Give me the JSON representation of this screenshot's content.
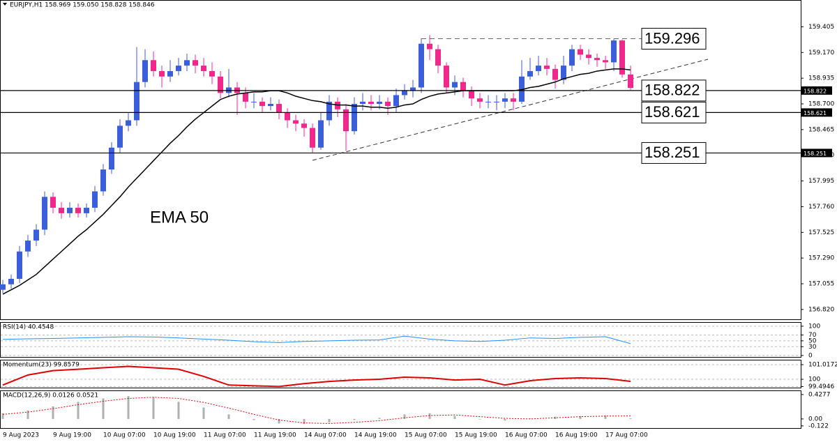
{
  "chart_data": [
    {
      "type": "candlestick",
      "header": "EURJPY,H1  158.969 159.050 158.828 158.846",
      "categories": [
        "9 Aug 2023",
        null,
        null,
        null,
        null,
        null,
        null,
        null,
        "9 Aug 19:00",
        null,
        null,
        null,
        null,
        null,
        "10 Aug 07:00",
        null,
        null,
        null,
        null,
        null,
        "10 Aug 19:00",
        null,
        null,
        null,
        null,
        null,
        "11 Aug 07:00",
        null,
        null,
        null,
        null,
        null,
        "11 Aug 19:00",
        null,
        null,
        null,
        null,
        null,
        "14 Aug 07:00",
        null,
        null,
        null,
        null,
        null,
        "14 Aug 19:00",
        null,
        null,
        null,
        null,
        null,
        "15 Aug 07:00",
        null,
        null,
        null,
        null,
        null,
        "15 Aug 19:00",
        null,
        null,
        null,
        null,
        null,
        "16 Aug 07:00",
        null,
        null,
        null,
        null,
        null,
        "16 Aug 19:00",
        null,
        null,
        null,
        null,
        null,
        "17 Aug 07:00",
        null
      ],
      "open": [
        157.0,
        157.05,
        157.1,
        157.35,
        157.45,
        157.55,
        157.85,
        157.75,
        157.7,
        157.75,
        157.7,
        157.75,
        157.9,
        158.1,
        158.3,
        158.5,
        158.55,
        158.9,
        159.1,
        159.0,
        158.95,
        159.0,
        159.05,
        159.1,
        159.05,
        159.0,
        158.95,
        158.8,
        158.85,
        158.8,
        158.72,
        158.72,
        158.68,
        158.7,
        158.62,
        158.55,
        158.52,
        158.48,
        158.3,
        158.55,
        158.72,
        158.65,
        158.45,
        158.7,
        158.72,
        158.7,
        158.72,
        158.68,
        158.78,
        158.82,
        158.85,
        159.25,
        159.2,
        159.05,
        158.85,
        158.9,
        158.82,
        158.75,
        158.72,
        158.72,
        158.72,
        158.75,
        158.72,
        158.95,
        159.0,
        159.05,
        159.02,
        158.92,
        159.05,
        159.2,
        159.15,
        159.12,
        159.1,
        159.08,
        159.28,
        158.969
      ],
      "high": [
        157.09,
        157.14,
        157.4,
        157.5,
        157.6,
        157.9,
        157.89,
        157.8,
        157.8,
        157.79,
        157.79,
        157.95,
        158.15,
        158.35,
        158.56,
        158.62,
        159.22,
        159.2,
        159.18,
        159.05,
        159.1,
        159.12,
        159.16,
        159.15,
        159.12,
        159.08,
        159.0,
        159.02,
        158.9,
        158.85,
        158.8,
        158.76,
        158.76,
        158.74,
        158.66,
        158.6,
        158.56,
        158.52,
        158.62,
        158.78,
        158.76,
        158.7,
        158.76,
        158.8,
        158.78,
        158.78,
        158.76,
        158.84,
        158.88,
        158.92,
        159.3,
        159.33,
        159.24,
        159.08,
        158.96,
        158.94,
        158.86,
        158.8,
        158.78,
        158.78,
        158.8,
        158.8,
        159.1,
        159.12,
        159.14,
        159.12,
        159.06,
        159.14,
        159.24,
        159.24,
        159.2,
        159.16,
        159.14,
        159.296,
        159.29,
        159.05
      ],
      "low": [
        156.97,
        157.01,
        157.06,
        157.3,
        157.4,
        157.5,
        157.7,
        157.65,
        157.66,
        157.66,
        157.66,
        157.71,
        157.86,
        158.06,
        158.25,
        158.45,
        158.5,
        158.85,
        158.95,
        158.85,
        158.9,
        158.96,
        159.0,
        158.98,
        158.95,
        158.88,
        158.75,
        158.76,
        158.6,
        158.66,
        158.66,
        158.62,
        158.64,
        158.56,
        158.48,
        158.45,
        158.4,
        158.25,
        158.28,
        158.5,
        158.58,
        158.27,
        158.42,
        158.64,
        158.64,
        158.65,
        158.6,
        158.62,
        158.74,
        158.76,
        158.8,
        159.1,
        158.98,
        158.8,
        158.78,
        158.76,
        158.68,
        158.66,
        158.66,
        158.64,
        158.66,
        158.64,
        158.7,
        158.92,
        158.96,
        158.96,
        158.84,
        158.88,
        159.0,
        159.1,
        159.06,
        159.04,
        159.02,
        159.0,
        158.94,
        158.828
      ],
      "close": [
        157.05,
        157.1,
        157.35,
        157.45,
        157.55,
        157.85,
        157.75,
        157.7,
        157.75,
        157.7,
        157.75,
        157.9,
        158.1,
        158.3,
        158.5,
        158.55,
        158.9,
        159.1,
        159.0,
        158.95,
        159.0,
        159.05,
        159.1,
        159.05,
        159.0,
        158.95,
        158.8,
        158.85,
        158.8,
        158.72,
        158.72,
        158.68,
        158.7,
        158.62,
        158.55,
        158.52,
        158.48,
        158.3,
        158.55,
        158.72,
        158.65,
        158.45,
        158.7,
        158.72,
        158.7,
        158.72,
        158.68,
        158.78,
        158.82,
        158.85,
        159.25,
        159.2,
        159.05,
        158.85,
        158.9,
        158.82,
        158.75,
        158.72,
        158.72,
        158.72,
        158.75,
        158.72,
        158.95,
        159.0,
        159.05,
        159.02,
        158.92,
        159.05,
        159.2,
        159.15,
        159.12,
        159.1,
        159.08,
        159.28,
        158.969,
        158.846
      ],
      "up_color": "#3a5fd9",
      "down_color": "#f0288c",
      "series": [
        {
          "name": "EMA 50",
          "color": "#000000",
          "values": [
            156.96,
            157.0,
            157.04,
            157.09,
            157.14,
            157.21,
            157.28,
            157.35,
            157.42,
            157.49,
            157.55,
            157.62,
            157.69,
            157.77,
            157.85,
            157.94,
            158.02,
            158.1,
            158.18,
            158.26,
            158.34,
            158.41,
            158.49,
            158.56,
            158.62,
            158.68,
            158.74,
            158.77,
            158.79,
            158.8,
            158.81,
            158.81,
            158.82,
            158.82,
            158.8,
            158.77,
            158.75,
            158.73,
            158.72,
            158.7,
            158.69,
            158.69,
            158.68,
            158.68,
            158.67,
            158.67,
            158.66,
            158.67,
            158.69,
            158.7,
            158.74,
            158.77,
            158.79,
            158.8,
            158.81,
            158.82,
            158.82,
            158.82,
            158.82,
            158.82,
            158.82,
            158.82,
            158.83,
            158.85,
            158.86,
            158.88,
            158.9,
            158.93,
            158.95,
            158.97,
            158.98,
            159.0,
            159.01,
            159.02,
            159.02,
            159.01
          ]
        }
      ],
      "levels": [
        158.822,
        158.621,
        158.251
      ],
      "resistance": 159.296,
      "ylim": [
        156.73,
        159.65
      ],
      "yticks": [
        159.405,
        {
          "value": 159.17,
          "label": "159.170"
        },
        158.935,
        {
          "value": 158.7,
          "label": "158.700"
        },
        158.465,
        {
          "value": 158.23,
          "label": "158.230"
        },
        157.995,
        {
          "value": 157.76,
          "label": "157.760"
        },
        157.525,
        {
          "value": 157.29,
          "label": "157.290"
        },
        157.055,
        {
          "value": 156.82,
          "label": "156.820"
        }
      ]
    },
    {
      "type": "line",
      "title": "RSI(14) 40.4548",
      "color": "#1e8fff",
      "values": [
        55,
        57,
        58,
        60,
        62,
        64,
        63,
        60,
        56,
        52,
        47,
        44,
        48,
        50,
        52,
        53,
        66,
        56,
        50,
        48,
        52,
        60,
        58,
        62,
        64,
        40.4548
      ],
      "ylim": [
        -5,
        114
      ],
      "yticks": [
        100,
        70,
        50,
        30,
        0
      ]
    },
    {
      "type": "line",
      "title": "Momentum(23) 99.8579",
      "color": "#e00000",
      "values": [
        99.6,
        100.3,
        100.6,
        100.7,
        100.8,
        100.9,
        100.8,
        100.7,
        100.2,
        99.6,
        99.55,
        99.5,
        99.7,
        99.85,
        99.95,
        100.0,
        100.15,
        100.1,
        99.95,
        100.0,
        99.6,
        99.9,
        100.05,
        100.1,
        100.05,
        99.8579
      ],
      "ylim": [
        99.42,
        101.36
      ],
      "yticks": [
        101.0172,
        100,
        99.4946
      ]
    },
    {
      "type": "macd",
      "title": "MACD(12,26,9) 0.0126 0.0521",
      "color": "#b0b0b0",
      "signal_color": "#e00000",
      "values": [
        0.1,
        0.15,
        0.22,
        0.3,
        0.36,
        0.4,
        0.38,
        0.3,
        0.2,
        0.08,
        -0.02,
        -0.08,
        -0.09,
        -0.06,
        -0.02,
        0.02,
        0.08,
        0.1,
        0.05,
        -0.01,
        -0.03,
        0.01,
        0.04,
        0.05,
        0.06,
        0.0126
      ],
      "signal": [
        0.08,
        0.12,
        0.18,
        0.25,
        0.31,
        0.36,
        0.38,
        0.36,
        0.29,
        0.19,
        0.08,
        -0.02,
        -0.07,
        -0.08,
        -0.06,
        -0.03,
        0.02,
        0.06,
        0.07,
        0.04,
        0.01,
        0.0,
        0.02,
        0.04,
        0.05,
        0.0521
      ],
      "ylim": [
        -0.16,
        0.5
      ],
      "yticks": [
        0.4277,
        {
          "value": 0,
          "label": "0.00"
        },
        -0.122
      ]
    }
  ]
}
